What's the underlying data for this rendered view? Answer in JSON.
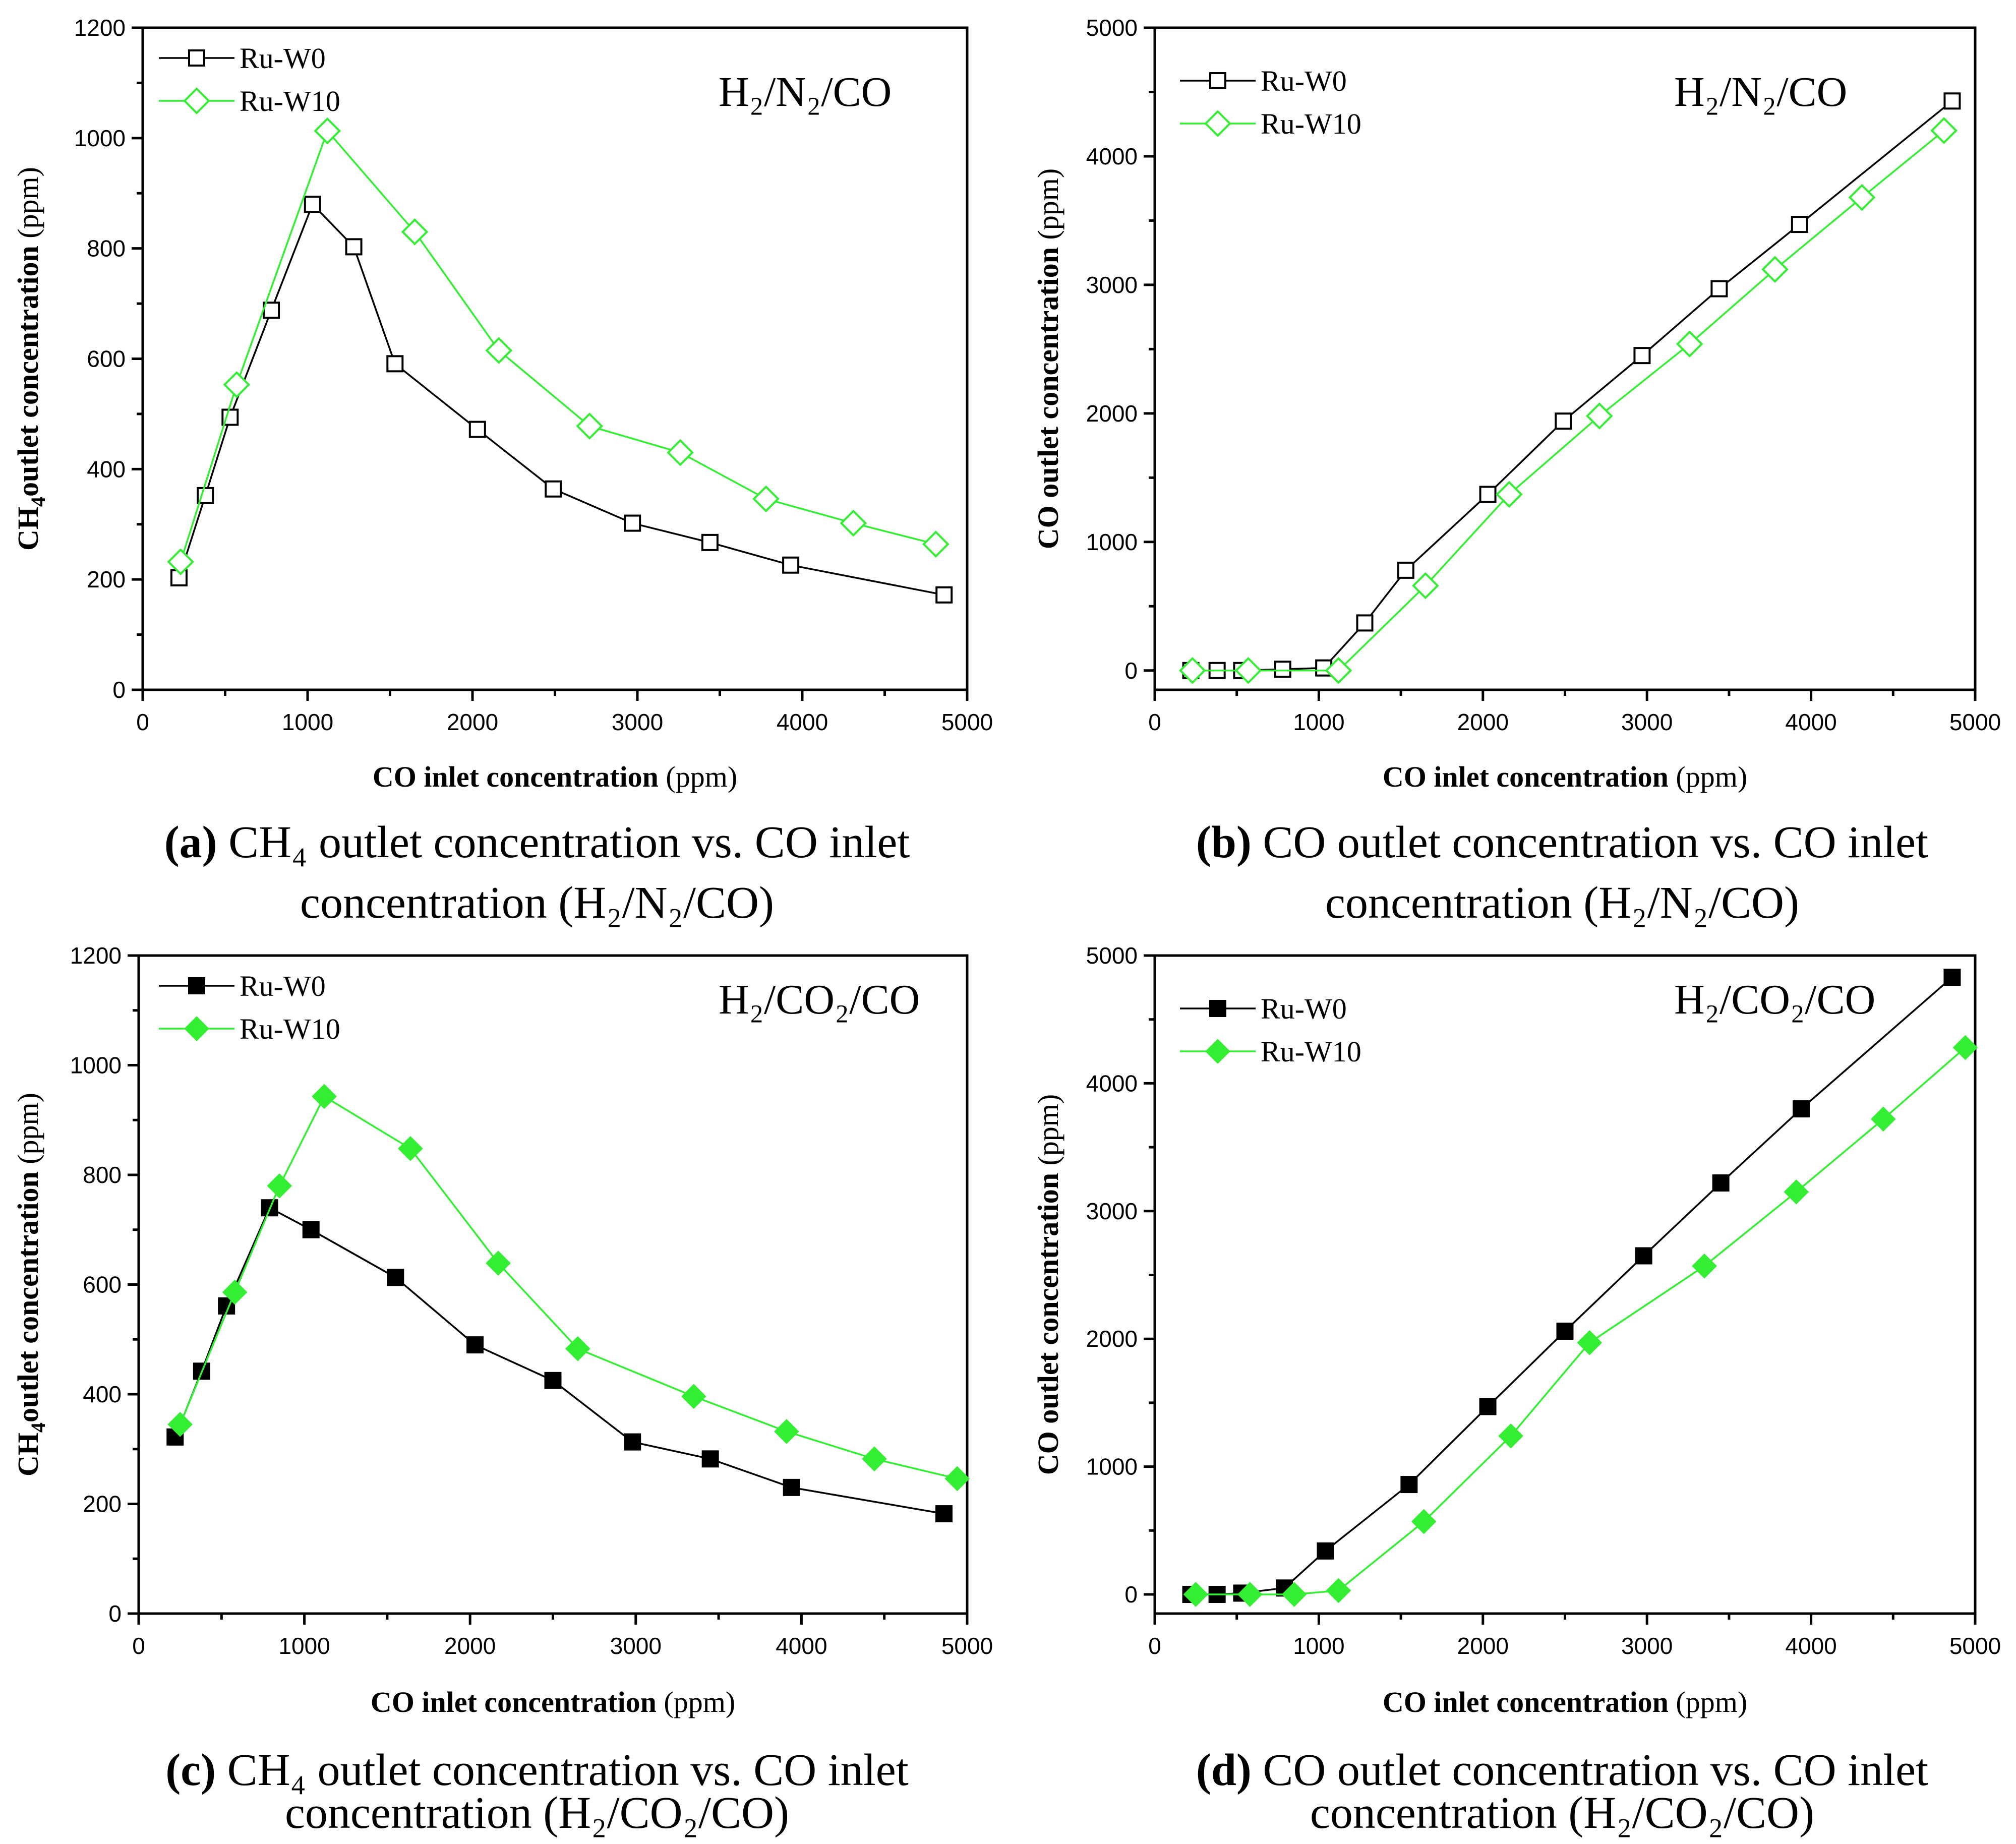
{
  "colors": {
    "w0": "#000000",
    "w10": "#33ee33",
    "axis": "#000000"
  },
  "chart_data": [
    {
      "id": "a",
      "type": "line",
      "annotation": "H₂/N₂/CO",
      "xlabel_bold": "CO inlet concentration",
      "xlabel_unit": " (ppm)",
      "ylabel_main": "CH",
      "ylabel_sub": "4",
      "ylabel_rest": "outlet concentration",
      "ylabel_unit": " (ppm)",
      "xlim": [
        0,
        5000
      ],
      "ylim": [
        0,
        1200
      ],
      "xticks": [
        "0",
        "1000",
        "2000",
        "3000",
        "4000",
        "5000"
      ],
      "yticks": [
        "0",
        "200",
        "400",
        "600",
        "800",
        "1000",
        "1200"
      ],
      "xtick_values": [
        0,
        1000,
        2000,
        3000,
        4000,
        5000
      ],
      "ytick_values": [
        0,
        200,
        400,
        600,
        800,
        1000,
        1200
      ],
      "marker_fill": "open",
      "legend": [
        "Ru-W0",
        "Ru-W10"
      ],
      "series": [
        {
          "name": "Ru-W0",
          "marker": "square",
          "x": [
            220,
            380,
            530,
            780,
            1030,
            1280,
            1530,
            2030,
            2490,
            2970,
            3440,
            3930,
            4860
          ],
          "y": [
            203,
            352,
            494,
            688,
            880,
            803,
            591,
            472,
            364,
            302,
            267,
            226,
            172
          ]
        },
        {
          "name": "Ru-W10",
          "marker": "diamond",
          "x": [
            230,
            570,
            1120,
            1650,
            2160,
            2710,
            3260,
            3780,
            4310,
            4810
          ],
          "y": [
            232,
            553,
            1013,
            830,
            615,
            478,
            430,
            346,
            302,
            264
          ]
        }
      ],
      "caption_bold": "(a)",
      "caption_line1": " CH₄ outlet concentration vs. CO inlet",
      "caption_line2": "concentration (H₂/N₂/CO)"
    },
    {
      "id": "b",
      "type": "line",
      "annotation": "H₂/N₂/CO",
      "xlabel_bold": "CO inlet concentration",
      "xlabel_unit": " (ppm)",
      "ylabel_main": "CO outlet concentration",
      "ylabel_sub": "",
      "ylabel_rest": "",
      "ylabel_unit": " (ppm)",
      "xlim": [
        0,
        5000
      ],
      "ylim": [
        -150,
        5000
      ],
      "xticks": [
        "0",
        "1000",
        "2000",
        "3000",
        "4000",
        "5000"
      ],
      "yticks": [
        "0",
        "1000",
        "2000",
        "3000",
        "4000",
        "5000"
      ],
      "xtick_values": [
        0,
        1000,
        2000,
        3000,
        4000,
        5000
      ],
      "ytick_values": [
        0,
        1000,
        2000,
        3000,
        4000,
        5000
      ],
      "marker_fill": "open",
      "legend": [
        "Ru-W0",
        "Ru-W10"
      ],
      "series": [
        {
          "name": "Ru-W0",
          "marker": "square",
          "x": [
            220,
            380,
            530,
            780,
            1030,
            1280,
            1530,
            2030,
            2490,
            2970,
            3440,
            3930,
            4860
          ],
          "y": [
            0,
            0,
            0,
            10,
            20,
            370,
            780,
            1370,
            1940,
            2450,
            2970,
            3470,
            4430
          ]
        },
        {
          "name": "Ru-W10",
          "marker": "diamond",
          "x": [
            230,
            570,
            1120,
            1650,
            2160,
            2710,
            3260,
            3780,
            4310,
            4810
          ],
          "y": [
            0,
            0,
            0,
            660,
            1370,
            1980,
            2540,
            3120,
            3680,
            4200
          ]
        }
      ],
      "caption_bold": "(b)",
      "caption_line1": " CO outlet concentration vs. CO inlet",
      "caption_line2": "concentration (H₂/N₂/CO)"
    },
    {
      "id": "c",
      "type": "line",
      "annotation": "H₂/CO₂/CO",
      "xlabel_bold": "CO inlet concentration",
      "xlabel_unit": " (ppm)",
      "ylabel_main": "CH",
      "ylabel_sub": "4",
      "ylabel_rest": "outlet concentration",
      "ylabel_unit": " (ppm)",
      "xlim": [
        0,
        5000
      ],
      "ylim": [
        0,
        1200
      ],
      "xticks": [
        "0",
        "1000",
        "2000",
        "3000",
        "4000",
        "5000"
      ],
      "yticks": [
        "0",
        "200",
        "400",
        "600",
        "800",
        "1000",
        "1200"
      ],
      "xtick_values": [
        0,
        1000,
        2000,
        3000,
        4000,
        5000
      ],
      "ytick_values": [
        0,
        200,
        400,
        600,
        800,
        1000,
        1200
      ],
      "marker_fill": "filled",
      "legend": [
        "Ru-W0",
        "Ru-W10"
      ],
      "series": [
        {
          "name": "Ru-W0",
          "marker": "square",
          "x": [
            220,
            380,
            530,
            790,
            1040,
            1550,
            2030,
            2500,
            2980,
            3450,
            3940,
            4860
          ],
          "y": [
            322,
            442,
            561,
            740,
            700,
            613,
            490,
            425,
            313,
            282,
            230,
            182
          ]
        },
        {
          "name": "Ru-W10",
          "marker": "diamond",
          "x": [
            250,
            580,
            850,
            1120,
            1640,
            2170,
            2650,
            3350,
            3910,
            4440,
            4940
          ],
          "y": [
            345,
            586,
            780,
            943,
            848,
            639,
            483,
            396,
            332,
            282,
            246
          ]
        }
      ],
      "caption_bold": "(c)",
      "caption_line1": " CH₄ outlet concentration vs. CO inlet",
      "caption_line2": "concentration (H₂/CO₂/CO)"
    },
    {
      "id": "d",
      "type": "line",
      "annotation": "H₂/CO₂/CO",
      "xlabel_bold": "CO inlet concentration",
      "xlabel_unit": " (ppm)",
      "ylabel_main": "CO outlet concentration",
      "ylabel_sub": "",
      "ylabel_rest": "",
      "ylabel_unit": " (ppm)",
      "xlim": [
        0,
        5000
      ],
      "ylim": [
        -150,
        5000
      ],
      "xticks": [
        "0",
        "1000",
        "2000",
        "3000",
        "4000",
        "5000"
      ],
      "yticks": [
        "0",
        "1000",
        "2000",
        "3000",
        "4000",
        "5000"
      ],
      "xtick_values": [
        0,
        1000,
        2000,
        3000,
        4000,
        5000
      ],
      "ytick_values": [
        0,
        1000,
        2000,
        3000,
        4000,
        5000
      ],
      "marker_fill": "filled",
      "legend": [
        "Ru-W0",
        "Ru-W10"
      ],
      "series": [
        {
          "name": "Ru-W0",
          "marker": "square",
          "x": [
            220,
            380,
            530,
            790,
            1040,
            1550,
            2030,
            2500,
            2980,
            3450,
            3940,
            4860
          ],
          "y": [
            0,
            0,
            10,
            50,
            340,
            860,
            1470,
            2060,
            2650,
            3220,
            3800,
            4830
          ]
        },
        {
          "name": "Ru-W10",
          "marker": "diamond",
          "x": [
            250,
            580,
            850,
            1120,
            1640,
            2170,
            2650,
            3350,
            3910,
            4440,
            4940
          ],
          "y": [
            0,
            0,
            0,
            30,
            570,
            1240,
            1970,
            2570,
            3150,
            3720,
            4280
          ]
        }
      ],
      "caption_bold": "(d)",
      "caption_line1": " CO outlet concentration vs. CO inlet",
      "caption_line2": "concentration (H₂/CO₂/CO)"
    }
  ]
}
